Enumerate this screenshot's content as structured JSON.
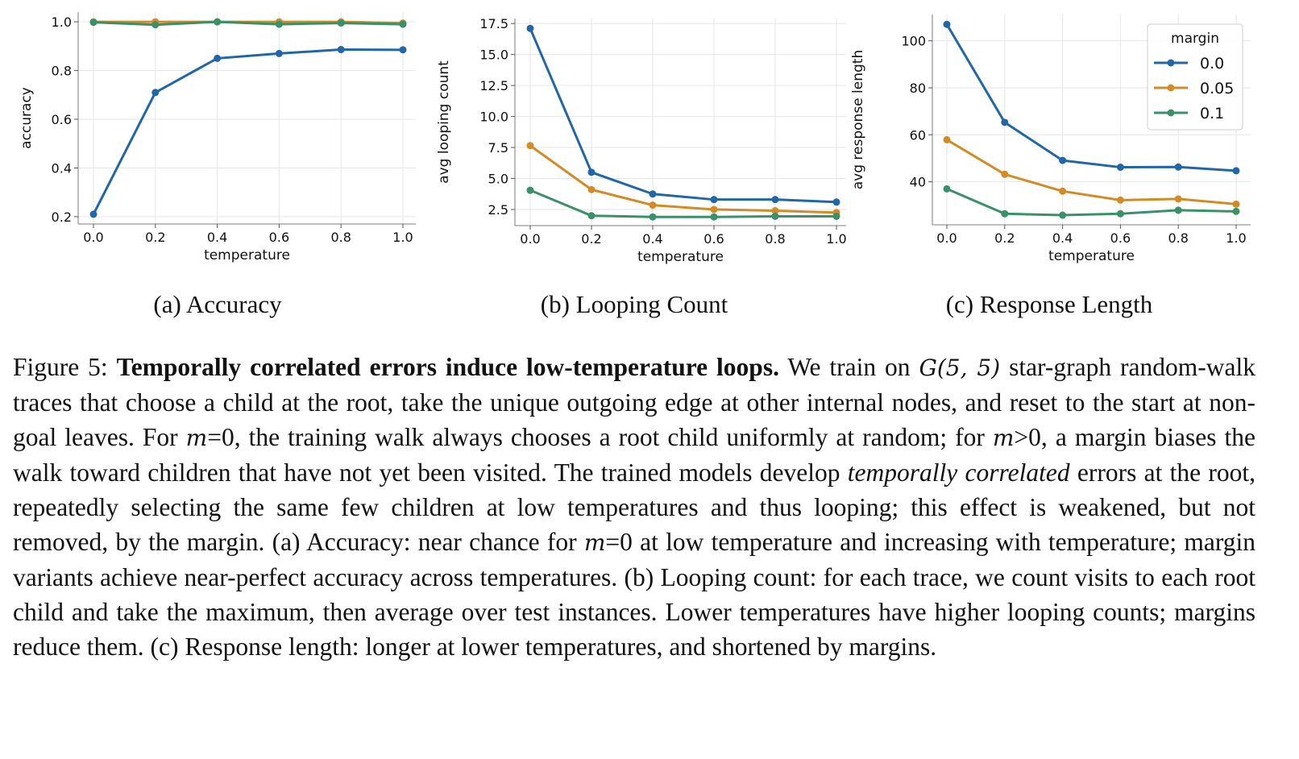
{
  "subcaptions": [
    "(a) Accuracy",
    "(b) Looping Count",
    "(c) Response Length"
  ],
  "caption": [
    {
      "text": "Figure 5: ",
      "style": "n"
    },
    {
      "text": "Temporally correlated errors induce low-temperature loops.",
      "style": "b"
    },
    {
      "text": " We train on ",
      "style": "n"
    },
    {
      "text": "G(5, 5)",
      "style": "m"
    },
    {
      "text": " star-graph random-walk traces that choose a child at the root, take the unique outgoing edge at other internal nodes, and reset to the start at non-goal leaves. For ",
      "style": "n"
    },
    {
      "text": "m",
      "style": "m"
    },
    {
      "text": "=0, the training walk always chooses a root child uniformly at random; for ",
      "style": "n"
    },
    {
      "text": "m",
      "style": "m"
    },
    {
      "text": ">0, a margin biases the walk toward children that have not yet been visited.  The trained models develop ",
      "style": "n"
    },
    {
      "text": "temporally correlated",
      "style": "i"
    },
    {
      "text": " errors at the root, repeatedly selecting the same few children at low temperatures and thus looping; this effect is weakened, but not removed, by the margin. (a) Accuracy: near chance for ",
      "style": "n"
    },
    {
      "text": "m",
      "style": "m"
    },
    {
      "text": "=0 at low temperature and increasing with temperature; margin variants achieve near-perfect accuracy across temperatures. (b) Looping count: for each trace, we count visits to each root child and take the maximum, then average over test instances. Lower temperatures have higher looping counts; margins reduce them. (c) Response length: longer at lower temperatures, and shortened by margins.",
      "style": "n"
    }
  ],
  "chart_data": [
    {
      "type": "line",
      "xlabel": "temperature",
      "ylabel": "accuracy",
      "x": [
        0.0,
        0.2,
        0.4,
        0.6,
        0.8,
        1.0
      ],
      "xticks": [
        "0.0",
        "0.2",
        "0.4",
        "0.6",
        "0.8",
        "1.0"
      ],
      "yticks": [
        0.2,
        0.4,
        0.6,
        0.8,
        1.0
      ],
      "ytick_labels": [
        "0.2",
        "0.4",
        "0.6",
        "0.8",
        "1.0"
      ],
      "ylim": [
        0.17,
        1.04
      ],
      "grid": true,
      "series": [
        {
          "name": "0.0",
          "color": "#2166a6",
          "values": [
            0.21,
            0.71,
            0.85,
            0.87,
            0.886,
            0.885
          ]
        },
        {
          "name": "0.05",
          "color": "#d38b26",
          "values": [
            1.0,
            1.0,
            1.0,
            1.0,
            1.0,
            0.995
          ]
        },
        {
          "name": "0.1",
          "color": "#3a9068",
          "values": [
            0.998,
            0.988,
            1.0,
            0.99,
            0.995,
            0.99
          ]
        }
      ]
    },
    {
      "type": "line",
      "xlabel": "temperature",
      "ylabel": "avg looping count",
      "x": [
        0.0,
        0.2,
        0.4,
        0.6,
        0.8,
        1.0
      ],
      "xticks": [
        "0.0",
        "0.2",
        "0.4",
        "0.6",
        "0.8",
        "1.0"
      ],
      "yticks": [
        2.5,
        5.0,
        7.5,
        10.0,
        12.5,
        15.0,
        17.5
      ],
      "ytick_labels": [
        "2.5",
        "5.0",
        "7.5",
        "10.0",
        "12.5",
        "15.0",
        "17.5"
      ],
      "ylim": [
        1.2,
        17.9
      ],
      "grid": true,
      "series": [
        {
          "name": "0.0",
          "color": "#2166a6",
          "values": [
            17.1,
            5.5,
            3.75,
            3.3,
            3.3,
            3.1
          ]
        },
        {
          "name": "0.05",
          "color": "#d38b26",
          "values": [
            7.65,
            4.1,
            2.85,
            2.5,
            2.4,
            2.25
          ]
        },
        {
          "name": "0.1",
          "color": "#3a9068",
          "values": [
            4.05,
            2.0,
            1.9,
            1.9,
            1.95,
            1.95
          ]
        }
      ]
    },
    {
      "type": "line",
      "xlabel": "temperature",
      "ylabel": "avg response length",
      "x": [
        0.0,
        0.2,
        0.4,
        0.6,
        0.8,
        1.0
      ],
      "xticks": [
        "0.0",
        "0.2",
        "0.4",
        "0.6",
        "0.8",
        "1.0"
      ],
      "yticks": [
        40,
        60,
        80,
        100
      ],
      "ytick_labels": [
        "40",
        "60",
        "80",
        "100"
      ],
      "ylim": [
        21.7,
        111.2
      ],
      "grid": true,
      "legend": {
        "title": "margin",
        "placement": "top-right"
      },
      "series": [
        {
          "name": "0.0",
          "color": "#2166a6",
          "values": [
            107.0,
            65.3,
            49.1,
            46.2,
            46.3,
            44.7
          ]
        },
        {
          "name": "0.05",
          "color": "#d38b26",
          "values": [
            57.9,
            43.2,
            36.0,
            32.2,
            32.7,
            30.5
          ]
        },
        {
          "name": "0.1",
          "color": "#3a9068",
          "values": [
            37.0,
            26.4,
            25.8,
            26.4,
            27.9,
            27.4
          ]
        }
      ]
    }
  ]
}
